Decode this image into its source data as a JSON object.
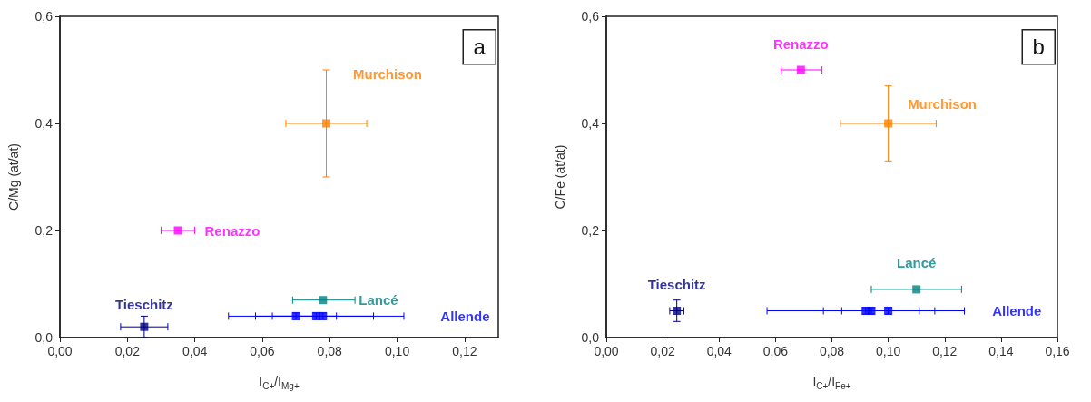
{
  "chart_data": [
    {
      "type": "scatter",
      "xlabel": "I$_{C+}$/I$_{Mg+}$",
      "ylabel": "C/Mg (at/at)",
      "annotations": [
        "a"
      ],
      "marker": "square",
      "grid": false,
      "legend": false,
      "xlim": [
        0,
        0.13
      ],
      "xticks": [
        {
          "value": 0,
          "label": "0,00"
        },
        {
          "value": 0.02,
          "label": "0,02"
        },
        {
          "value": 0.04,
          "label": "0,04"
        },
        {
          "value": 0.06,
          "label": "0,06"
        },
        {
          "value": 0.08,
          "label": "0,08"
        },
        {
          "value": 0.1,
          "label": "0,10"
        },
        {
          "value": 0.12,
          "label": "0,12"
        }
      ],
      "ylim": [
        0,
        0.6
      ],
      "yticks": [
        {
          "value": 0,
          "label": "0,0"
        },
        {
          "value": 0.2,
          "label": "0,2"
        },
        {
          "value": 0.4,
          "label": "0,4"
        },
        {
          "value": 0.6,
          "label": "0,6"
        }
      ],
      "series": [
        {
          "name": "Tieschitz",
          "color": "#000080",
          "x": [
            0.025
          ],
          "values": [
            0.02
          ],
          "xerrors": [
            0.007
          ],
          "errors": [
            0.02
          ]
        },
        {
          "name": "Allende",
          "color": "#0000ff",
          "x": [
            0.07,
            0.076,
            0.078
          ],
          "values": [
            0.04,
            0.04,
            0.04
          ],
          "xerrors": [
            0.012,
            0.026,
            0.015
          ],
          "errors": [
            0.006,
            0.006,
            0.006
          ]
        },
        {
          "name": "Lancé",
          "color": "#008080",
          "x": [
            0.078
          ],
          "values": [
            0.07
          ],
          "xerrors": [
            [
              0.069,
              0.0875
            ]
          ],
          "errors": [
            null
          ]
        },
        {
          "name": "Renazzo",
          "color": "#ff00ff",
          "x": [
            0.035
          ],
          "values": [
            0.2
          ],
          "xerrors": [
            0.005
          ],
          "errors": [
            null
          ]
        },
        {
          "name": "Murchison",
          "color": "#ff8000",
          "x": [
            0.079
          ],
          "values": [
            0.4
          ],
          "xerrors": [
            0.012
          ],
          "errors": [
            0.1
          ]
        }
      ]
    },
    {
      "type": "scatter",
      "xlabel": "I$_{C+}$/I$_{Fe+}$",
      "ylabel": "C/Fe (at/at)",
      "annotations": [
        "b"
      ],
      "marker": "square",
      "grid": false,
      "legend": false,
      "xlim": [
        0,
        0.16
      ],
      "xticks": [
        {
          "value": 0,
          "label": "0,00"
        },
        {
          "value": 0.02,
          "label": "0,02"
        },
        {
          "value": 0.04,
          "label": "0,04"
        },
        {
          "value": 0.06,
          "label": "0,06"
        },
        {
          "value": 0.08,
          "label": "0,08"
        },
        {
          "value": 0.1,
          "label": "0,10"
        },
        {
          "value": 0.12,
          "label": "0,12"
        },
        {
          "value": 0.14,
          "label": "0,14"
        },
        {
          "value": 0.16,
          "label": "0,16"
        }
      ],
      "ylim": [
        0,
        0.6
      ],
      "yticks": [
        {
          "value": 0,
          "label": "0,0"
        },
        {
          "value": 0.2,
          "label": "0,2"
        },
        {
          "value": 0.4,
          "label": "0,4"
        },
        {
          "value": 0.6,
          "label": "0,6"
        }
      ],
      "series": [
        {
          "name": "Tieschitz",
          "color": "#000080",
          "x": [
            0.025
          ],
          "values": [
            0.05
          ],
          "xerrors": [
            0.0025
          ],
          "errors": [
            0.02
          ]
        },
        {
          "name": "Allende",
          "color": "#0000ff",
          "x": [
            0.092,
            0.094,
            0.1
          ],
          "values": [
            0.05,
            0.05,
            0.05
          ],
          "xerrors": [
            0.035,
            0.017,
            0.0165
          ],
          "errors": [
            0.006,
            0.006,
            0.006
          ]
        },
        {
          "name": "Lancé",
          "color": "#008080",
          "x": [
            0.11
          ],
          "values": [
            0.09
          ],
          "xerrors": [
            0.016
          ],
          "errors": [
            null
          ]
        },
        {
          "name": "Renazzo",
          "color": "#ff00ff",
          "x": [
            0.069
          ],
          "values": [
            0.5
          ],
          "xerrors": [
            [
              0.062,
              0.0765
            ]
          ],
          "errors": [
            null
          ]
        },
        {
          "name": "Murchison",
          "color": "#ff8000",
          "x": [
            0.1
          ],
          "values": [
            0.4
          ],
          "xerrors": [
            0.017
          ],
          "errors": [
            0.07
          ]
        }
      ]
    }
  ]
}
